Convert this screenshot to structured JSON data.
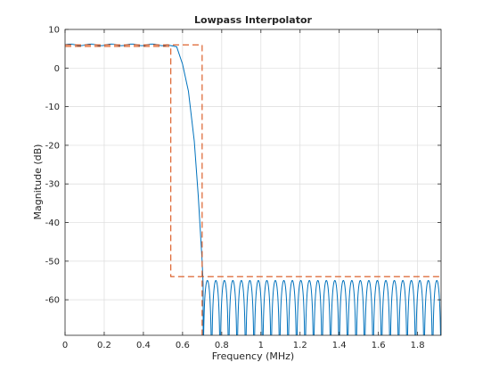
{
  "chart_data": {
    "type": "line",
    "title": "Lowpass Interpolator",
    "xlabel": "Frequency (MHz)",
    "ylabel": "Magnitude (dB)",
    "xlim": [
      0,
      1.92
    ],
    "ylim": [
      -69.2,
      10
    ],
    "x_ticks": [
      0,
      0.2,
      0.4,
      0.6,
      0.8,
      1,
      1.2,
      1.4,
      1.6,
      1.8
    ],
    "x_tick_labels": [
      "0",
      "0.2",
      "0.4",
      "0.6",
      "0.8",
      "1",
      "1.2",
      "1.4",
      "1.6",
      "1.8"
    ],
    "y_ticks": [
      10,
      0,
      -10,
      -20,
      -30,
      -40,
      -50,
      -60
    ],
    "y_tick_labels": [
      "10",
      "0",
      "-10",
      "-20",
      "-30",
      "-40",
      "-50",
      "-60"
    ],
    "grid": true,
    "colors": {
      "response": "#0072bd",
      "mask": "#d95319",
      "grid": "#dcdcdc",
      "axes": "#262626"
    },
    "series": [
      {
        "kind": "magnitude-response",
        "passband": {
          "x_end": 0.52,
          "level": 6.0,
          "ripple": 0.2
        },
        "transition": [
          [
            0.52,
            6.0
          ],
          [
            0.57,
            5.5
          ],
          [
            0.6,
            1.0
          ],
          [
            0.63,
            -6.0
          ],
          [
            0.66,
            -19.0
          ],
          [
            0.68,
            -33.0
          ],
          [
            0.7,
            -50.0
          ],
          [
            0.705,
            -56.0
          ]
        ],
        "stopband": {
          "x_start": 0.705,
          "x_end": 1.92,
          "peak": -55.0,
          "lobes": 28
        }
      },
      {
        "kind": "spec-mask",
        "upper": [
          [
            0,
            6.0
          ],
          [
            0.7,
            6.0
          ],
          [
            0.7,
            -69.2
          ]
        ],
        "lower": [
          [
            0,
            5.6
          ],
          [
            0.54,
            5.6
          ],
          [
            0.54,
            -54.0
          ],
          [
            1.92,
            -54.0
          ]
        ]
      }
    ]
  }
}
